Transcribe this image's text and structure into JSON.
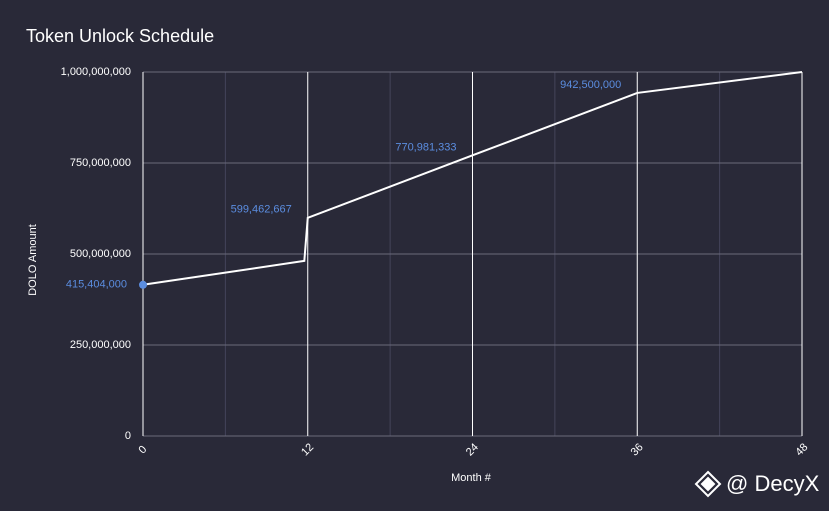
{
  "chart_data": {
    "type": "line",
    "title": "Token Unlock Schedule",
    "x_label": "Month #",
    "y_label": "DOLO Amount",
    "x": [
      0,
      11.75,
      12,
      24,
      36,
      48
    ],
    "series": [
      {
        "name": "DOLO Amount",
        "color": "#ffffff",
        "values": [
          415404000,
          481000000,
          599462667,
          770981333,
          942500000,
          1000000000
        ],
        "value_labels": [
          "415,404,000",
          null,
          "599,462,667",
          "770,981,333",
          "942,500,000",
          null
        ]
      }
    ],
    "label_color": "#5b8de0",
    "xlim": [
      0,
      48
    ],
    "xticks": [
      0,
      12,
      24,
      36,
      48
    ],
    "xminor": [
      6,
      18,
      30,
      42
    ],
    "ylim": [
      0,
      1000000000
    ],
    "yticks": [
      0,
      {
        "value": 250000000,
        "label": "250,000,000"
      },
      {
        "value": 500000000,
        "label": "500,000,000"
      },
      {
        "value": 750000000,
        "label": "750,000,000"
      },
      {
        "value": 1000000000,
        "label": "1,000,000,000"
      }
    ],
    "grid": true,
    "watermark": "@ DecyX"
  }
}
